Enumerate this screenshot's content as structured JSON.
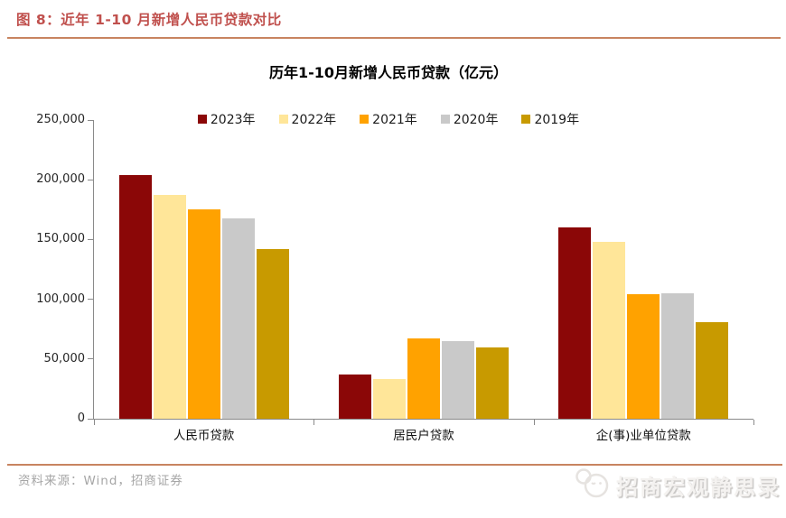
{
  "figure_header": {
    "title": "图 8：近年 1-10 月新增人民币贷款对比",
    "accent_color": "#C0504D",
    "rule_color": "#C88460"
  },
  "chart_data": {
    "type": "bar",
    "title": "历年1-10月新增人民币贷款（亿元）",
    "categories": [
      "人民币贷款",
      "居民户贷款",
      "企(事)业单位贷款"
    ],
    "series": [
      {
        "name": "2023年",
        "color": "#8B0707",
        "values": [
          204000,
          37000,
          160000
        ]
      },
      {
        "name": "2022年",
        "color": "#FFE699",
        "values": [
          187000,
          33000,
          148000
        ]
      },
      {
        "name": "2021年",
        "color": "#FFA200",
        "values": [
          175000,
          67000,
          104000
        ]
      },
      {
        "name": "2020年",
        "color": "#C9C9C9",
        "values": [
          168000,
          65000,
          105000
        ]
      },
      {
        "name": "2019年",
        "color": "#C89A00",
        "values": [
          142000,
          60000,
          81000
        ]
      }
    ],
    "ylim": [
      0,
      250000
    ],
    "yticks": [
      0,
      50000,
      100000,
      150000,
      200000,
      250000
    ],
    "ytick_labels": [
      "0",
      "50,000",
      "100,000",
      "150,000",
      "200,000",
      "250,000"
    ],
    "unit": "亿元",
    "grid": false,
    "legend_position": "top"
  },
  "footer": {
    "source": "资料来源：Wind，招商证券"
  },
  "watermark": {
    "text": "招商宏观静思录"
  }
}
